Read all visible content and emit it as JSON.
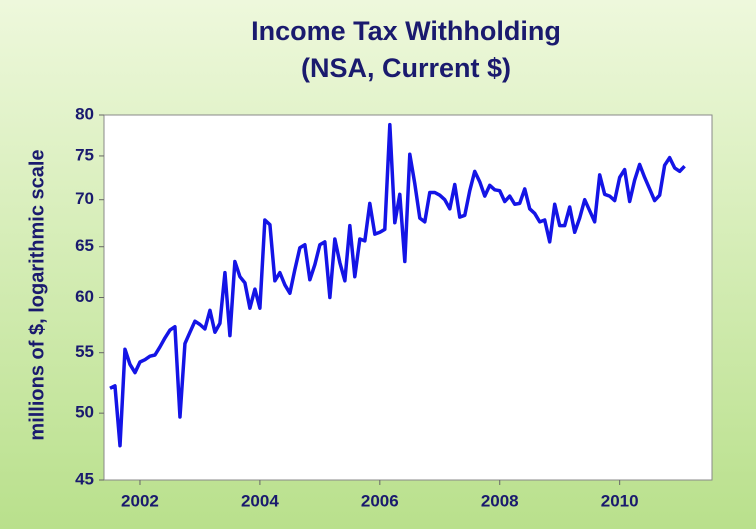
{
  "chart_data": {
    "type": "line",
    "title": "Income Tax Withholding",
    "subtitle": "(NSA, Current $)",
    "y_label": "millions of $, logarithmic scale",
    "log_scale": true,
    "grid": false,
    "x": [
      2001.5,
      2001.583,
      2001.667,
      2001.75,
      2001.833,
      2001.917,
      2002,
      2002.083,
      2002.167,
      2002.25,
      2002.333,
      2002.417,
      2002.5,
      2002.583,
      2002.667,
      2002.75,
      2002.833,
      2002.917,
      2003,
      2003.083,
      2003.167,
      2003.25,
      2003.333,
      2003.417,
      2003.5,
      2003.583,
      2003.667,
      2003.75,
      2003.833,
      2003.917,
      2004,
      2004.083,
      2004.167,
      2004.25,
      2004.333,
      2004.417,
      2004.5,
      2004.583,
      2004.667,
      2004.75,
      2004.833,
      2004.917,
      2005,
      2005.083,
      2005.167,
      2005.25,
      2005.333,
      2005.417,
      2005.5,
      2005.583,
      2005.667,
      2005.75,
      2005.833,
      2005.917,
      2006,
      2006.083,
      2006.167,
      2006.25,
      2006.333,
      2006.417,
      2006.5,
      2006.583,
      2006.667,
      2006.75,
      2006.833,
      2006.917,
      2007,
      2007.083,
      2007.167,
      2007.25,
      2007.333,
      2007.417,
      2007.5,
      2007.583,
      2007.667,
      2007.75,
      2007.833,
      2007.917,
      2008,
      2008.083,
      2008.167,
      2008.25,
      2008.333,
      2008.417,
      2008.5,
      2008.583,
      2008.667,
      2008.75,
      2008.833,
      2008.917,
      2009,
      2009.083,
      2009.167,
      2009.25,
      2009.333,
      2009.417,
      2009.5,
      2009.583,
      2009.667,
      2009.75,
      2009.833,
      2009.917,
      2010,
      2010.083,
      2010.167,
      2010.25,
      2010.333,
      2010.417,
      2010.5,
      2010.583,
      2010.667,
      2010.75,
      2010.833,
      2010.917,
      2011,
      2011.083
    ],
    "series": [
      {
        "name": "Income Tax Withholding",
        "color": "#1414e6",
        "values": [
          52.0,
          52.2,
          47.5,
          55.3,
          54.0,
          53.3,
          54.2,
          54.4,
          54.7,
          54.8,
          55.5,
          56.3,
          57.0,
          57.3,
          49.7,
          55.8,
          56.8,
          57.8,
          57.5,
          57.1,
          58.8,
          56.8,
          57.6,
          62.4,
          56.5,
          63.5,
          62.0,
          61.4,
          59.0,
          60.8,
          59.0,
          67.8,
          67.3,
          61.6,
          62.4,
          61.2,
          60.4,
          62.7,
          64.9,
          65.2,
          61.7,
          63.2,
          65.2,
          65.5,
          60.0,
          65.8,
          63.4,
          61.6,
          67.2,
          62.0,
          65.8,
          65.6,
          69.6,
          66.3,
          66.5,
          66.8,
          78.8,
          67.5,
          70.6,
          63.5,
          75.2,
          71.8,
          68.0,
          67.6,
          70.8,
          70.8,
          70.5,
          70.0,
          69.0,
          71.7,
          68.1,
          68.3,
          71.0,
          73.2,
          72.0,
          70.4,
          71.6,
          71.1,
          71.0,
          69.8,
          70.4,
          69.5,
          69.6,
          71.2,
          69.0,
          68.5,
          67.6,
          67.8,
          65.5,
          69.5,
          67.2,
          67.2,
          69.2,
          66.5,
          68.0,
          70.0,
          68.8,
          67.6,
          72.8,
          70.6,
          70.4,
          69.9,
          72.5,
          73.4,
          69.8,
          72.2,
          74.0,
          72.5,
          71.2,
          69.9,
          70.5,
          73.9,
          74.8,
          73.6,
          73.2,
          73.8
        ]
      }
    ],
    "xlim": [
      2001.4,
      2011.54
    ],
    "xticks": [
      2002,
      2004,
      2006,
      2008,
      2010
    ],
    "ylim": [
      45,
      80
    ],
    "yticks": [
      45,
      50,
      55,
      60,
      65,
      70,
      75,
      80
    ]
  }
}
